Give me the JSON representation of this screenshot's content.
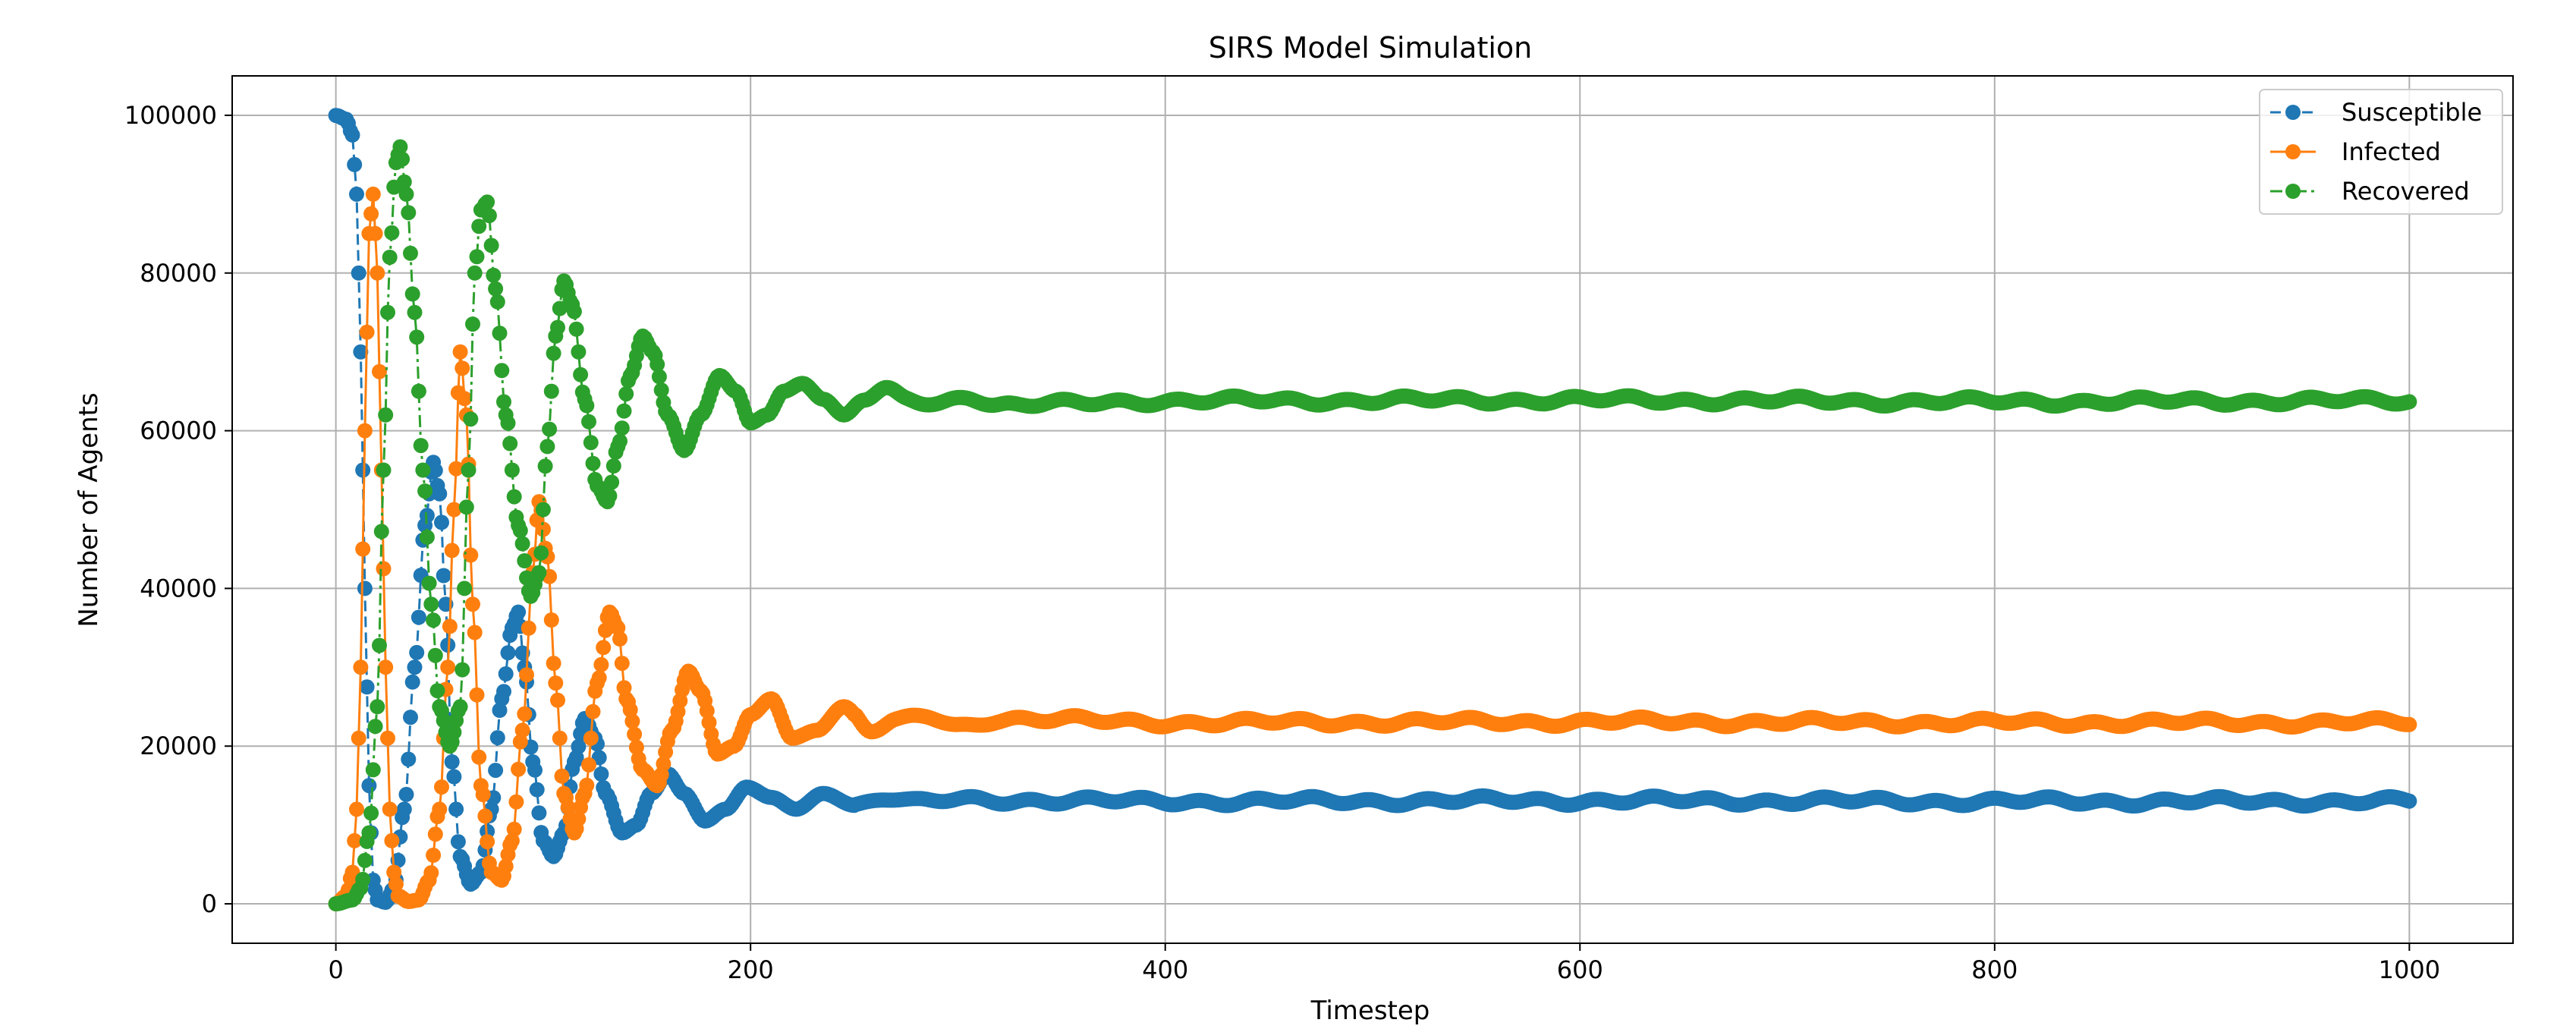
{
  "chart_data": {
    "type": "line",
    "title": "SIRS Model Simulation",
    "xlabel": "Timestep",
    "ylabel": "Number of Agents",
    "xlim": [
      -50,
      1050
    ],
    "ylim": [
      -5000,
      105000
    ],
    "xticks": [
      0,
      200,
      400,
      600,
      800,
      1000
    ],
    "yticks": [
      0,
      20000,
      40000,
      60000,
      80000,
      100000
    ],
    "x_tick_labels": [
      "0",
      "200",
      "400",
      "600",
      "800",
      "1000"
    ],
    "y_tick_labels": [
      "0",
      "20000",
      "40000",
      "60000",
      "80000",
      "100000"
    ],
    "grid": true,
    "legend_position": "top-right",
    "x_range": [
      0,
      1000
    ],
    "series": [
      {
        "name": "Susceptible",
        "color": "#1f77b4",
        "line_style": "dashed",
        "marker": "circle",
        "keypoints": [
          [
            0,
            99990
          ],
          [
            5,
            99500
          ],
          [
            8,
            97500
          ],
          [
            10,
            90000
          ],
          [
            12,
            70000
          ],
          [
            14,
            40000
          ],
          [
            16,
            15000
          ],
          [
            18,
            3000
          ],
          [
            20,
            500
          ],
          [
            24,
            200
          ],
          [
            28,
            2000
          ],
          [
            33,
            12000
          ],
          [
            38,
            30000
          ],
          [
            43,
            48000
          ],
          [
            47,
            56000
          ],
          [
            50,
            52000
          ],
          [
            53,
            38000
          ],
          [
            56,
            18000
          ],
          [
            60,
            6000
          ],
          [
            65,
            2500
          ],
          [
            70,
            4000
          ],
          [
            75,
            12000
          ],
          [
            80,
            26000
          ],
          [
            85,
            35000
          ],
          [
            88,
            37000
          ],
          [
            91,
            30000
          ],
          [
            95,
            18000
          ],
          [
            100,
            8000
          ],
          [
            105,
            6000
          ],
          [
            110,
            9000
          ],
          [
            115,
            18000
          ],
          [
            120,
            23500
          ],
          [
            125,
            21000
          ],
          [
            130,
            14000
          ],
          [
            138,
            9000
          ],
          [
            145,
            10000
          ],
          [
            152,
            14000
          ],
          [
            160,
            16500
          ],
          [
            168,
            14000
          ],
          [
            178,
            10500
          ],
          [
            188,
            12000
          ],
          [
            198,
            14800
          ],
          [
            210,
            13500
          ],
          [
            222,
            12000
          ],
          [
            235,
            14000
          ],
          [
            250,
            12500
          ],
          [
            265,
            13500
          ],
          [
            280,
            12800
          ],
          [
            300,
            13200
          ],
          [
            400,
            13000
          ],
          [
            600,
            13100
          ],
          [
            800,
            13000
          ],
          [
            1000,
            13000
          ]
        ]
      },
      {
        "name": "Infected",
        "color": "#ff7f0e",
        "line_style": "solid",
        "marker": "circle",
        "keypoints": [
          [
            0,
            0
          ],
          [
            5,
            1000
          ],
          [
            8,
            4000
          ],
          [
            10,
            12000
          ],
          [
            12,
            30000
          ],
          [
            14,
            60000
          ],
          [
            16,
            85000
          ],
          [
            18,
            90000
          ],
          [
            20,
            80000
          ],
          [
            22,
            55000
          ],
          [
            24,
            30000
          ],
          [
            26,
            12000
          ],
          [
            28,
            4000
          ],
          [
            30,
            1000
          ],
          [
            35,
            300
          ],
          [
            40,
            500
          ],
          [
            45,
            3000
          ],
          [
            50,
            12000
          ],
          [
            54,
            30000
          ],
          [
            57,
            50000
          ],
          [
            60,
            70000
          ],
          [
            63,
            62000
          ],
          [
            66,
            38000
          ],
          [
            70,
            15000
          ],
          [
            75,
            4000
          ],
          [
            80,
            3000
          ],
          [
            85,
            8000
          ],
          [
            90,
            22000
          ],
          [
            95,
            42000
          ],
          [
            98,
            51000
          ],
          [
            102,
            44000
          ],
          [
            106,
            28000
          ],
          [
            110,
            14000
          ],
          [
            115,
            9000
          ],
          [
            120,
            14000
          ],
          [
            126,
            28000
          ],
          [
            132,
            37000
          ],
          [
            136,
            35000
          ],
          [
            140,
            26000
          ],
          [
            148,
            17000
          ],
          [
            155,
            15000
          ],
          [
            162,
            22000
          ],
          [
            170,
            29500
          ],
          [
            176,
            27000
          ],
          [
            184,
            19000
          ],
          [
            192,
            20000
          ],
          [
            200,
            24000
          ],
          [
            210,
            26000
          ],
          [
            220,
            21000
          ],
          [
            232,
            22000
          ],
          [
            245,
            25000
          ],
          [
            258,
            22000
          ],
          [
            270,
            23000
          ],
          [
            285,
            23800
          ],
          [
            300,
            22500
          ],
          [
            320,
            23500
          ],
          [
            400,
            23000
          ],
          [
            600,
            23100
          ],
          [
            800,
            23000
          ],
          [
            1000,
            23000
          ]
        ]
      },
      {
        "name": "Recovered",
        "color": "#2ca02c",
        "line_style": "dashdot",
        "marker": "circle",
        "keypoints": [
          [
            0,
            0
          ],
          [
            8,
            500
          ],
          [
            12,
            2000
          ],
          [
            16,
            9000
          ],
          [
            20,
            25000
          ],
          [
            23,
            55000
          ],
          [
            26,
            82000
          ],
          [
            29,
            94000
          ],
          [
            31,
            96000
          ],
          [
            34,
            90000
          ],
          [
            38,
            75000
          ],
          [
            42,
            55000
          ],
          [
            46,
            38000
          ],
          [
            50,
            25000
          ],
          [
            55,
            20000
          ],
          [
            60,
            25000
          ],
          [
            64,
            55000
          ],
          [
            67,
            80000
          ],
          [
            70,
            88000
          ],
          [
            73,
            89000
          ],
          [
            77,
            78000
          ],
          [
            82,
            62000
          ],
          [
            88,
            48000
          ],
          [
            94,
            39000
          ],
          [
            98,
            42000
          ],
          [
            102,
            58000
          ],
          [
            106,
            72000
          ],
          [
            110,
            79000
          ],
          [
            114,
            76000
          ],
          [
            120,
            64000
          ],
          [
            126,
            53000
          ],
          [
            131,
            51000
          ],
          [
            136,
            58000
          ],
          [
            142,
            67000
          ],
          [
            148,
            72000
          ],
          [
            153,
            70000
          ],
          [
            160,
            62000
          ],
          [
            168,
            57500
          ],
          [
            176,
            62000
          ],
          [
            185,
            67000
          ],
          [
            193,
            65000
          ],
          [
            200,
            61000
          ],
          [
            208,
            62000
          ],
          [
            216,
            65000
          ],
          [
            225,
            66000
          ],
          [
            235,
            64000
          ],
          [
            245,
            62000
          ],
          [
            255,
            64000
          ],
          [
            265,
            65000
          ],
          [
            275,
            64000
          ],
          [
            290,
            63500
          ],
          [
            305,
            64500
          ],
          [
            320,
            63200
          ],
          [
            400,
            63800
          ],
          [
            600,
            63900
          ],
          [
            800,
            63700
          ],
          [
            1000,
            63800
          ]
        ]
      }
    ]
  }
}
